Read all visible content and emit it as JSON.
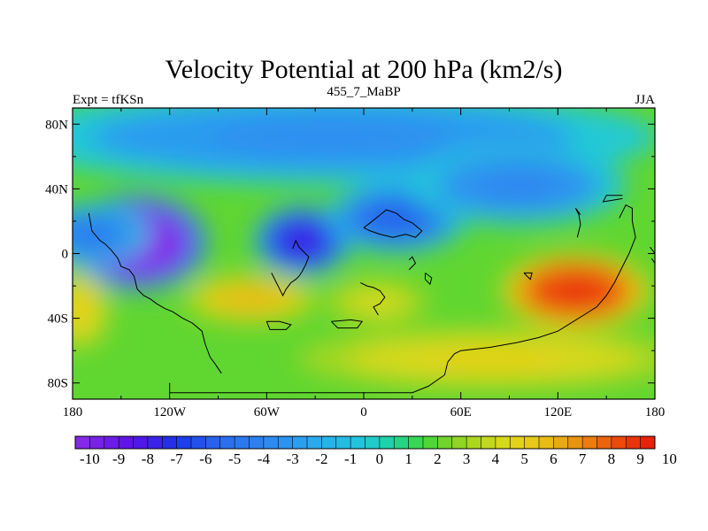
{
  "chart_data": {
    "type": "contour-map",
    "title": "Velocity Potential at 200 hPa (km2/s)",
    "left_string": "Expt = tfKSn",
    "center_string": "455_7_MaBP",
    "right_string": "JJA",
    "xlim": [
      -180,
      180
    ],
    "ylim": [
      -90,
      90
    ],
    "x_ticks": [
      {
        "value": -180,
        "label": "180"
      },
      {
        "value": -120,
        "label": "120W"
      },
      {
        "value": -60,
        "label": "60W"
      },
      {
        "value": 0,
        "label": "0"
      },
      {
        "value": 60,
        "label": "60E"
      },
      {
        "value": 120,
        "label": "120E"
      },
      {
        "value": 180,
        "label": "180"
      }
    ],
    "y_ticks": [
      {
        "value": 80,
        "label": "80N"
      },
      {
        "value": 40,
        "label": "40N"
      },
      {
        "value": 0,
        "label": "0"
      },
      {
        "value": -40,
        "label": "40S"
      },
      {
        "value": -80,
        "label": "80S"
      }
    ],
    "background_value": 2.5,
    "features": [
      {
        "name": "northern-high-latitudes",
        "lon": -20,
        "lat": 72,
        "value": -2.4,
        "rx": 150,
        "ry": 22
      },
      {
        "name": "ne-pacific-minimum",
        "lon": -140,
        "lat": 7,
        "value": -9.6,
        "rx": 32,
        "ry": 22
      },
      {
        "name": "central-america-minimum",
        "lon": -38,
        "lat": 8,
        "value": -6.8,
        "rx": 22,
        "ry": 16
      },
      {
        "name": "north-africa-trough",
        "lon": 20,
        "lat": 22,
        "value": -4.6,
        "rx": 32,
        "ry": 16
      },
      {
        "name": "asian-trough",
        "lon": 95,
        "lat": 42,
        "value": -2.8,
        "rx": 50,
        "ry": 18
      },
      {
        "name": "pacific-band",
        "lon": -170,
        "lat": 12,
        "value": -3.5,
        "rx": 28,
        "ry": 14
      },
      {
        "name": "western-pacific-maximum",
        "lon": 131,
        "lat": -23,
        "value": 8.6,
        "rx": 34,
        "ry": 17
      },
      {
        "name": "south-america-maximum",
        "lon": -70,
        "lat": -28,
        "value": 5.8,
        "rx": 30,
        "ry": 11
      },
      {
        "name": "southern-africa-maximum",
        "lon": 8,
        "lat": -30,
        "value": 4.4,
        "rx": 24,
        "ry": 10
      },
      {
        "name": "dateline-south",
        "lon": -176,
        "lat": -35,
        "value": 5.0,
        "rx": 14,
        "ry": 18
      },
      {
        "name": "southern-ocean",
        "lon": 80,
        "lat": -65,
        "value": 4.8,
        "rx": 90,
        "ry": 14
      }
    ],
    "colorbar": {
      "min": -10,
      "max": 10,
      "step": 0.5,
      "labels": [
        "-10",
        "-9",
        "-8",
        "-7",
        "-6",
        "-5",
        "-4",
        "-3",
        "-2",
        "-1",
        "0",
        "1",
        "2",
        "3",
        "4",
        "5",
        "6",
        "7",
        "8",
        "9",
        "10"
      ],
      "stops": [
        {
          "value": -10,
          "color": "#8a2ce8"
        },
        {
          "value": -8,
          "color": "#5a12e6"
        },
        {
          "value": -6.5,
          "color": "#1a35e8"
        },
        {
          "value": -5,
          "color": "#2a6bee"
        },
        {
          "value": -3,
          "color": "#2e8ef0"
        },
        {
          "value": -1.5,
          "color": "#2aaeee"
        },
        {
          "value": 0,
          "color": "#20c8d8"
        },
        {
          "value": 1,
          "color": "#1ed49a"
        },
        {
          "value": 2,
          "color": "#3ed83c"
        },
        {
          "value": 3,
          "color": "#82d426"
        },
        {
          "value": 4,
          "color": "#b8d81e"
        },
        {
          "value": 5,
          "color": "#e0d81a"
        },
        {
          "value": 6,
          "color": "#e8c418"
        },
        {
          "value": 7,
          "color": "#e8a012"
        },
        {
          "value": 8,
          "color": "#ec700e"
        },
        {
          "value": 9,
          "color": "#ec3c0c"
        },
        {
          "value": 10,
          "color": "#e41a0a"
        }
      ]
    },
    "coastlines": [
      [
        [
          -170,
          25
        ],
        [
          -168,
          14
        ],
        [
          -163,
          8
        ],
        [
          -160,
          6
        ],
        [
          -156,
          2
        ],
        [
          -152,
          -3
        ],
        [
          -150,
          -8
        ],
        [
          -145,
          -10
        ],
        [
          -142,
          -14
        ],
        [
          -140,
          -22
        ],
        [
          -136,
          -26
        ],
        [
          -132,
          -28
        ],
        [
          -128,
          -31
        ],
        [
          -123,
          -34
        ],
        [
          -118,
          -36
        ],
        [
          -112,
          -40
        ],
        [
          -106,
          -43
        ],
        [
          -100,
          -48
        ],
        [
          -98,
          -56
        ],
        [
          -95,
          -64
        ],
        [
          -92,
          -68
        ],
        [
          -88,
          -74
        ]
      ],
      [
        [
          -120,
          -80
        ],
        [
          -120,
          -86
        ],
        [
          -100,
          -86
        ],
        [
          30,
          -86
        ],
        [
          40,
          -82
        ],
        [
          50,
          -75
        ],
        [
          52,
          -67
        ],
        [
          56,
          -62
        ],
        [
          60,
          -60
        ],
        [
          78,
          -58
        ],
        [
          95,
          -55
        ],
        [
          108,
          -52
        ],
        [
          120,
          -48
        ],
        [
          128,
          -43
        ],
        [
          136,
          -38
        ],
        [
          144,
          -33
        ],
        [
          150,
          -26
        ],
        [
          155,
          -18
        ],
        [
          160,
          -8
        ],
        [
          164,
          0
        ],
        [
          168,
          10
        ],
        [
          166,
          20
        ],
        [
          166,
          28
        ],
        [
          162,
          30
        ],
        [
          158,
          22
        ]
      ],
      [
        [
          -57,
          -12
        ],
        [
          -54,
          -18
        ],
        [
          -52,
          -22
        ],
        [
          -50,
          -26
        ],
        [
          -48,
          -22
        ],
        [
          -45,
          -18
        ],
        [
          -42,
          -16
        ],
        [
          -40,
          -14
        ],
        [
          -38,
          -11
        ],
        [
          -36,
          -7
        ],
        [
          -34,
          -2
        ],
        [
          -36,
          0
        ],
        [
          -40,
          4
        ],
        [
          -42,
          8
        ],
        [
          -44,
          3
        ]
      ],
      [
        [
          -60,
          -42
        ],
        [
          -58,
          -47
        ],
        [
          -48,
          -47
        ],
        [
          -45,
          -44
        ],
        [
          -52,
          -42
        ],
        [
          -60,
          -42
        ]
      ],
      [
        [
          -20,
          -42
        ],
        [
          -16,
          -46
        ],
        [
          -4,
          -46
        ],
        [
          -1,
          -42
        ],
        [
          -8,
          -41
        ],
        [
          -20,
          -42
        ]
      ],
      [
        [
          -2,
          -18
        ],
        [
          2,
          -20
        ],
        [
          6,
          -21
        ],
        [
          10,
          -23
        ],
        [
          13,
          -27
        ],
        [
          10,
          -31
        ],
        [
          6,
          -33
        ],
        [
          9,
          -38
        ]
      ],
      [
        [
          28,
          -10
        ],
        [
          32,
          -6
        ],
        [
          30,
          -2
        ],
        [
          28,
          -4
        ]
      ],
      [
        [
          38,
          -12
        ],
        [
          42,
          -15
        ],
        [
          41,
          -19
        ],
        [
          38,
          -16
        ],
        [
          38,
          -12
        ]
      ],
      [
        [
          0,
          16
        ],
        [
          4,
          19
        ],
        [
          9,
          23
        ],
        [
          14,
          27
        ],
        [
          20,
          25
        ],
        [
          25,
          21
        ],
        [
          30,
          19
        ],
        [
          36,
          14
        ],
        [
          32,
          10
        ],
        [
          26,
          12
        ],
        [
          18,
          10
        ],
        [
          10,
          12
        ],
        [
          4,
          14
        ],
        [
          0,
          16
        ]
      ],
      [
        [
          99,
          -12
        ],
        [
          101,
          -14
        ],
        [
          103,
          -16
        ],
        [
          104,
          -12
        ],
        [
          99,
          -12
        ]
      ],
      [
        [
          132,
          10
        ],
        [
          134,
          18
        ],
        [
          133,
          24
        ],
        [
          131,
          28
        ],
        [
          134,
          24
        ]
      ],
      [
        [
          160,
          36
        ],
        [
          150,
          36
        ],
        [
          148,
          32
        ],
        [
          160,
          34
        ]
      ],
      [
        [
          177,
          4
        ],
        [
          180,
          0
        ],
        [
          180,
          -6
        ],
        [
          178,
          -3
        ]
      ]
    ]
  }
}
